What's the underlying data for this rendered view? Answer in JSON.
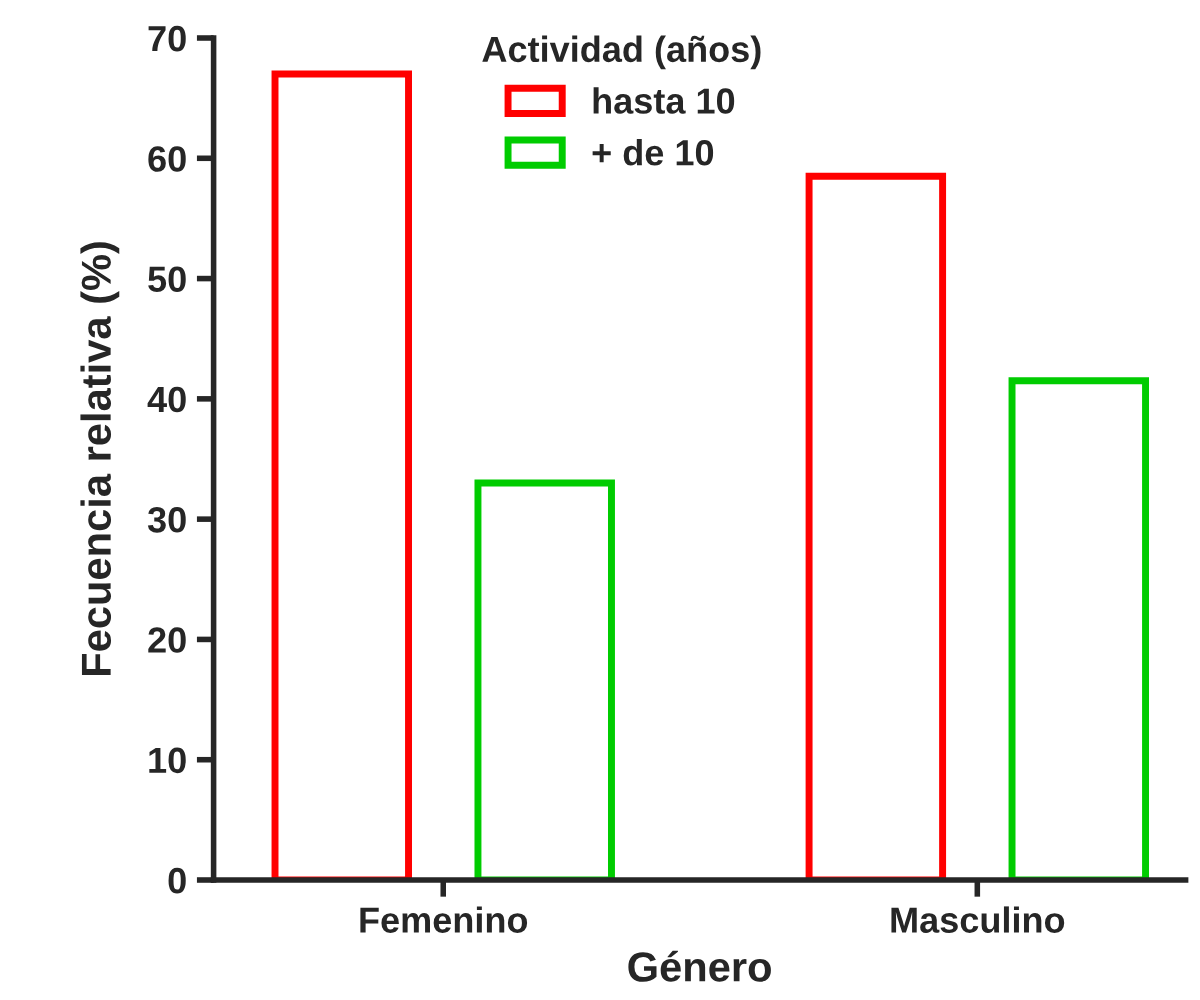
{
  "chart_data": {
    "type": "bar",
    "xlabel": "Género",
    "ylabel": "Fecuencia relativa (%)",
    "legend_title": "Actividad (años)",
    "categories": [
      "Femenino",
      "Masculino"
    ],
    "series": [
      {
        "name": "hasta 10",
        "color": "#ff0000",
        "values": [
          67,
          58.5
        ]
      },
      {
        "name": "+ de 10",
        "color": "#00cc00",
        "values": [
          33,
          41.5
        ]
      }
    ],
    "ylim": [
      0,
      70
    ],
    "yticks": [
      0,
      10,
      20,
      30,
      40,
      50,
      60,
      70
    ],
    "grid": false,
    "legend": "top"
  }
}
